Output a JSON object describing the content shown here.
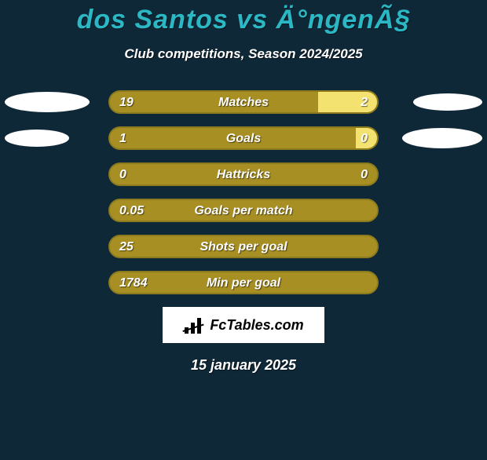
{
  "background_color": "#0f2838",
  "title": {
    "text": "dos Santos vs Ä°ngenÃ§",
    "color": "#2bb8c4",
    "fontsize": 34
  },
  "subtitle": {
    "text": "Club competitions, Season 2024/2025",
    "color": "#ffffff",
    "fontsize": 17
  },
  "bar_colors": {
    "track_border": "#8b7a1e",
    "left_fill": "#a78f24",
    "right_fill": "#f3e26f"
  },
  "ellipse_color": "#ffffff",
  "rows": [
    {
      "label": "Matches",
      "left_val": "19",
      "right_val": "2",
      "right_pct": 22,
      "left_ellipse_w": 108,
      "left_ellipse_h": 26,
      "right_ellipse_w": 88,
      "right_ellipse_h": 22
    },
    {
      "label": "Goals",
      "left_val": "1",
      "right_val": "0",
      "right_pct": 8,
      "left_ellipse_w": 82,
      "left_ellipse_h": 22,
      "right_ellipse_w": 102,
      "right_ellipse_h": 26
    },
    {
      "label": "Hattricks",
      "left_val": "0",
      "right_val": "0",
      "right_pct": 0,
      "left_ellipse_w": 0,
      "left_ellipse_h": 0,
      "right_ellipse_w": 0,
      "right_ellipse_h": 0
    },
    {
      "label": "Goals per match",
      "left_val": "0.05",
      "right_val": "",
      "right_pct": 0,
      "left_ellipse_w": 0,
      "left_ellipse_h": 0,
      "right_ellipse_w": 0,
      "right_ellipse_h": 0
    },
    {
      "label": "Shots per goal",
      "left_val": "25",
      "right_val": "",
      "right_pct": 0,
      "left_ellipse_w": 0,
      "left_ellipse_h": 0,
      "right_ellipse_w": 0,
      "right_ellipse_h": 0
    },
    {
      "label": "Min per goal",
      "left_val": "1784",
      "right_val": "",
      "right_pct": 0,
      "left_ellipse_w": 0,
      "left_ellipse_h": 0,
      "right_ellipse_w": 0,
      "right_ellipse_h": 0
    }
  ],
  "logo_text": "FcTables.com",
  "date": "15 january 2025"
}
